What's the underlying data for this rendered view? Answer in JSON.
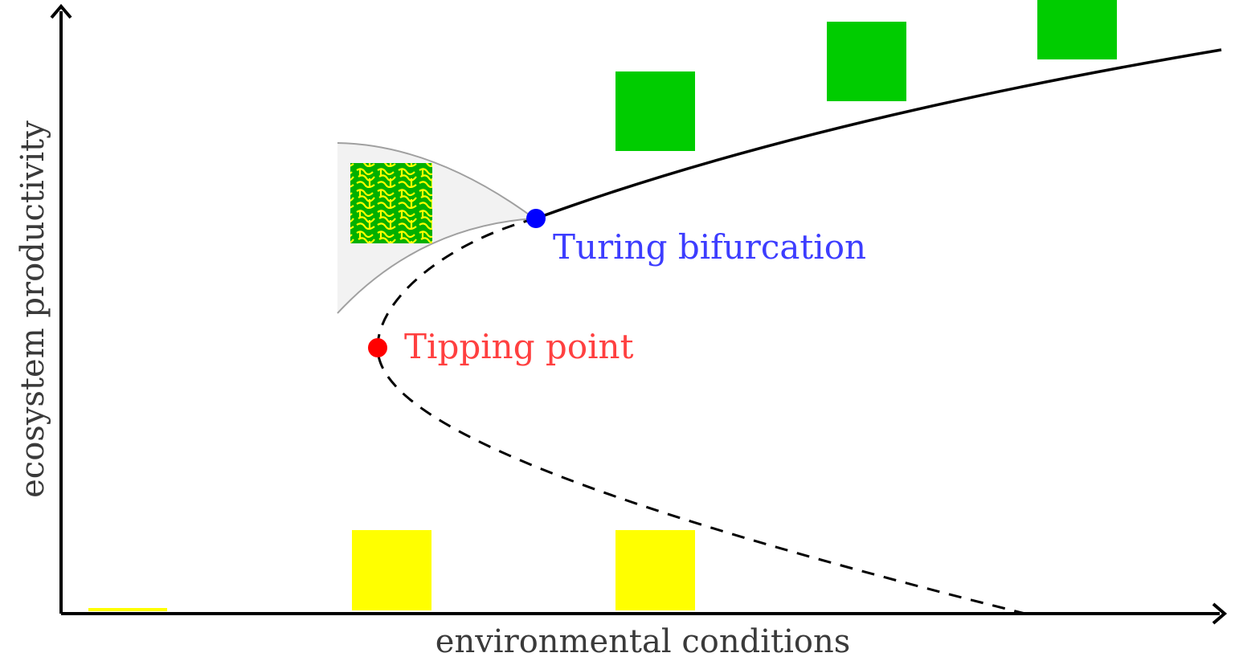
{
  "axes": {
    "xlabel": "environmental conditions",
    "ylabel": "ecosystem productivity"
  },
  "annotations": {
    "turing": {
      "label": "Turing bifurcation",
      "color": "#3d3dff",
      "marker_color": "#0000ff"
    },
    "tipping": {
      "label": "Tipping point",
      "color": "#ff4040",
      "marker_color": "#ff0000"
    }
  },
  "colors": {
    "vegetated": "#00cc00",
    "bare": "#ffff00",
    "pattern_region": "#f2f2f2",
    "stable_branch": "#000000",
    "unstable_branch": "#000000"
  },
  "legend_icons": {
    "vegetated_state": "green-square-icon",
    "bare_state": "yellow-square-icon",
    "pattern_state": "labyrinth-pattern-icon"
  }
}
